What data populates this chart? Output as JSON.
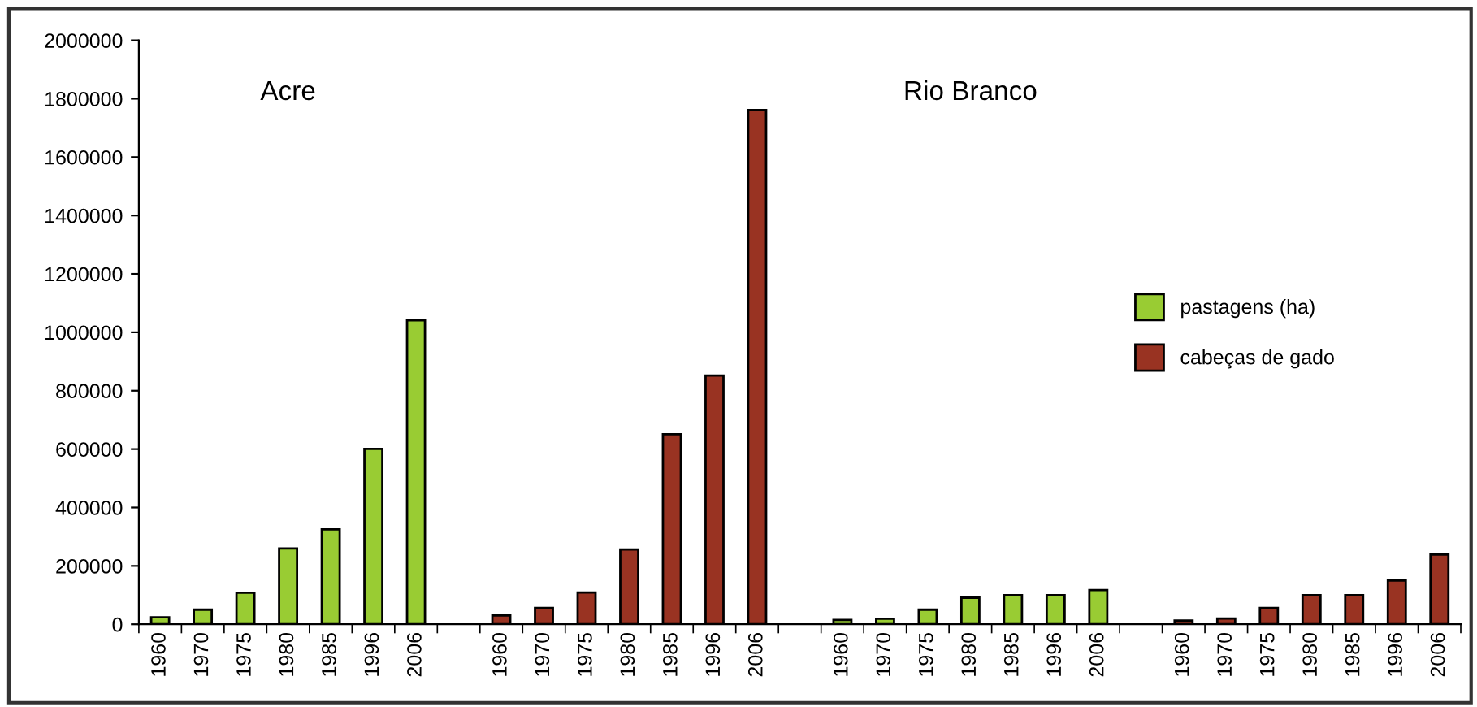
{
  "chart_data": {
    "type": "bar",
    "categories": [
      "1960",
      "1970",
      "1975",
      "1980",
      "1985",
      "1996",
      "2006",
      null,
      "1960",
      "1970",
      "1975",
      "1980",
      "1985",
      "1996",
      "2006",
      null,
      "1960",
      "1970",
      "1975",
      "1980",
      "1985",
      "1996",
      "2006",
      null,
      "1960",
      "1970",
      "1975",
      "1980",
      "1985",
      "1996",
      "2006"
    ],
    "series": [
      {
        "name": "pastagens (ha)",
        "color": "#99cc33",
        "values": [
          24000,
          50000,
          108000,
          260000,
          325000,
          601000,
          1041000,
          null,
          null,
          null,
          null,
          null,
          null,
          null,
          null,
          null,
          15000,
          19000,
          50000,
          91000,
          100000,
          100000,
          117000,
          null,
          null,
          null,
          null,
          null,
          null,
          null,
          null
        ]
      },
      {
        "name": "cabeças de gado",
        "color": "#993322",
        "values": [
          null,
          null,
          null,
          null,
          null,
          null,
          null,
          null,
          30000,
          56000,
          109000,
          256000,
          651000,
          852000,
          1761000,
          null,
          null,
          null,
          null,
          null,
          null,
          null,
          null,
          null,
          13000,
          20000,
          56000,
          100000,
          100000,
          150000,
          239000
        ]
      }
    ],
    "annotations": [
      "Acre",
      "Rio Branco"
    ],
    "ylim": [
      0,
      2000000
    ],
    "yticks": [
      0,
      200000,
      400000,
      600000,
      800000,
      1000000,
      1200000,
      1400000,
      1600000,
      1800000,
      2000000
    ],
    "legend": "right",
    "grid": false
  }
}
